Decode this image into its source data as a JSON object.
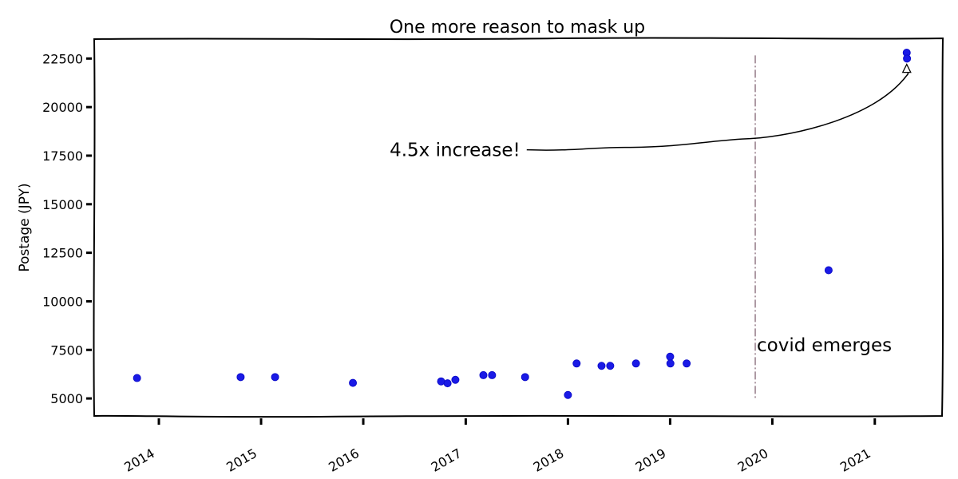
{
  "chart_data": {
    "type": "scatter",
    "title": "One more reason to mask up",
    "xlabel": "",
    "ylabel": "Postage (JPY)",
    "xlim": [
      "2013-05-15",
      "2021-09-01"
    ],
    "ylim": [
      4100,
      23500
    ],
    "x_ticks": [
      "2014",
      "2015",
      "2016",
      "2017",
      "2018",
      "2019",
      "2020",
      "2021"
    ],
    "y_ticks": [
      5000,
      7500,
      10000,
      12500,
      15000,
      17500,
      20000,
      22500
    ],
    "series": [
      {
        "color": "#1a1ae6",
        "points": [
          {
            "x": "2013-10-15",
            "y": 6050
          },
          {
            "x": "2014-10-20",
            "y": 6100
          },
          {
            "x": "2015-02-20",
            "y": 6100
          },
          {
            "x": "2015-11-25",
            "y": 5800
          },
          {
            "x": "2016-10-05",
            "y": 5880
          },
          {
            "x": "2016-10-28",
            "y": 5780
          },
          {
            "x": "2016-11-25",
            "y": 5960
          },
          {
            "x": "2017-03-05",
            "y": 6200
          },
          {
            "x": "2017-04-05",
            "y": 6200
          },
          {
            "x": "2017-08-01",
            "y": 6100
          },
          {
            "x": "2018-01-01",
            "y": 5180
          },
          {
            "x": "2018-02-01",
            "y": 6800
          },
          {
            "x": "2018-05-01",
            "y": 6680
          },
          {
            "x": "2018-06-01",
            "y": 6680
          },
          {
            "x": "2018-09-01",
            "y": 6800
          },
          {
            "x": "2019-01-01",
            "y": 7150
          },
          {
            "x": "2019-01-02",
            "y": 6800
          },
          {
            "x": "2019-03-01",
            "y": 6800
          },
          {
            "x": "2020-07-20",
            "y": 11600
          },
          {
            "x": "2021-04-25",
            "y": 22800
          },
          {
            "x": "2021-04-26",
            "y": 22500
          }
        ]
      }
    ],
    "annotations": {
      "covid_date": "2019-11-01",
      "covid_line_range": [
        5000,
        22500
      ],
      "covid_label": "covid emerges",
      "increase_label": "4.5x increase!",
      "increase_target": {
        "x": "2021-04-25",
        "y": 22200
      },
      "increase_text_anchor": {
        "x": "2017-07-15",
        "y": 17800
      }
    },
    "grid": false,
    "legend": "none"
  }
}
